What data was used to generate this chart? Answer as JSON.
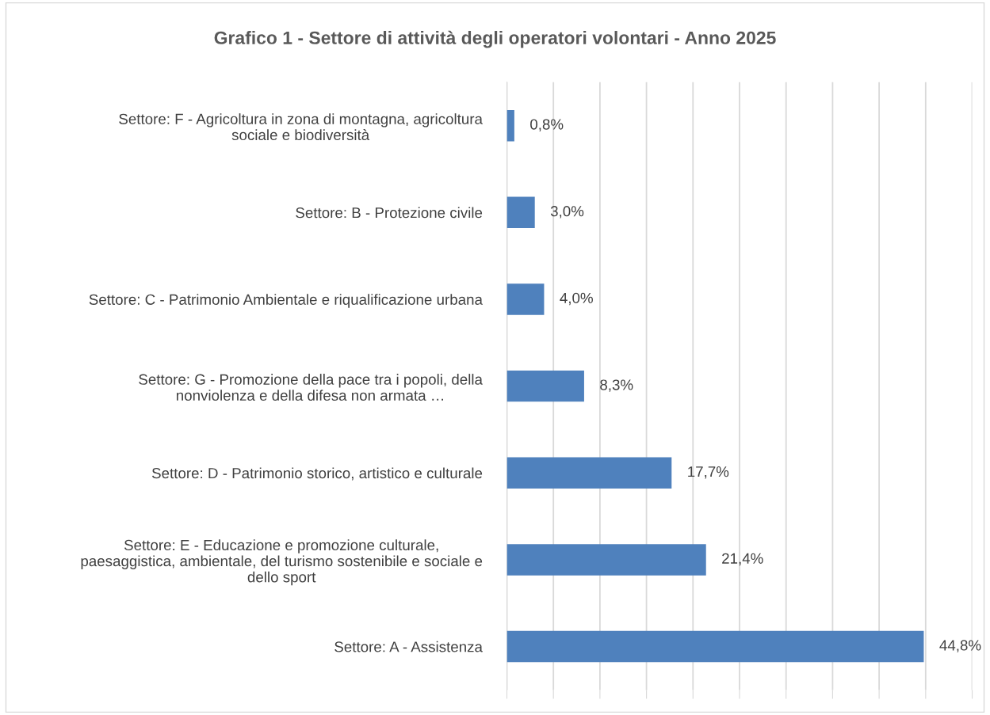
{
  "chart_data": {
    "type": "bar",
    "orientation": "horizontal",
    "title": "Grafico 1 - Settore di attività degli operatori volontari - Anno 2025",
    "categories": [
      "Settore: F - Agricoltura in zona di montagna, agricoltura\nsociale e biodiversità",
      "Settore: B - Protezione civile",
      "Settore: C - Patrimonio Ambientale e riqualificazione urbana",
      "Settore: G - Promozione della pace tra i popoli, della\nnonviolenza e della difesa non armata …",
      "Settore: D - Patrimonio storico, artistico e culturale",
      "Settore: E - Educazione e promozione culturale,\npaesaggistica, ambientale, del turismo sostenibile e sociale e\ndello sport",
      "Settore: A - Assistenza"
    ],
    "values": [
      0.8,
      3.0,
      4.0,
      8.3,
      17.7,
      21.4,
      44.8
    ],
    "value_labels": [
      "0,8%",
      "3,0%",
      "4,0%",
      "8,3%",
      "17,7%",
      "21,4%",
      "44,8%"
    ],
    "color": "#4f81bd",
    "xlim": [
      0,
      50
    ],
    "xticks": [
      {
        "value": 0,
        "label": null
      },
      {
        "value": 5,
        "label": null
      },
      {
        "value": 10,
        "label": null
      },
      {
        "value": 15,
        "label": null
      },
      {
        "value": 20,
        "label": null
      },
      {
        "value": 25,
        "label": null
      },
      {
        "value": 30,
        "label": null
      },
      {
        "value": 35,
        "label": null
      },
      {
        "value": 40,
        "label": null
      },
      {
        "value": 45,
        "label": null
      },
      {
        "value": 50,
        "label": null
      }
    ],
    "tick_labels": "y",
    "grid": "x",
    "legend": false
  }
}
